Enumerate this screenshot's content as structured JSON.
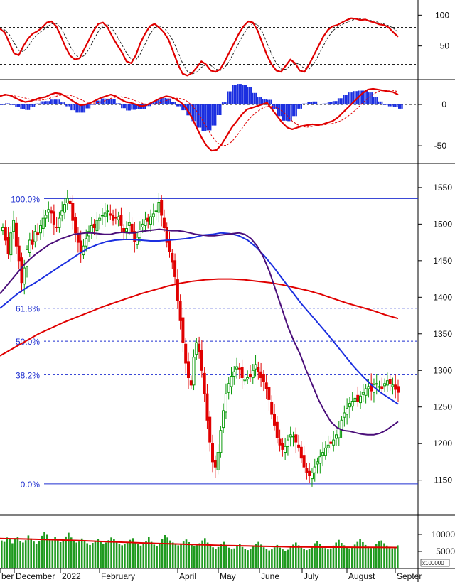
{
  "chart_data": {
    "type": "candlestick",
    "colors": {
      "up": "#0a9a0a",
      "down": "#e00000",
      "ma_short": "#4b0f7a",
      "ma_mid": "#1b2fe0",
      "ma_long": "#e00000",
      "fib": "#1f2fd0",
      "volume": "#1f9a1f"
    },
    "x_axis": {
      "labels": [
        "ber",
        "December",
        "2022",
        "February",
        "April",
        "May",
        "June",
        "July",
        "August",
        "Septer"
      ]
    },
    "price_panel": {
      "ylim": [
        1105,
        1580
      ],
      "ticks": [
        1550,
        1500,
        1450,
        1400,
        1350,
        1300,
        1250,
        1200,
        1150
      ],
      "fib_levels": [
        {
          "label": "100.0%",
          "value": 1535,
          "style": "solid"
        },
        {
          "label": "61.8%",
          "value": 1385,
          "style": "dashed"
        },
        {
          "label": "50.0%",
          "value": 1340,
          "style": "dashed"
        },
        {
          "label": "38.2%",
          "value": 1294,
          "style": "dashed"
        },
        {
          "label": "0.0%",
          "value": 1145,
          "style": "solid"
        }
      ],
      "close_series": [
        1495,
        1478,
        1460,
        1488,
        1505,
        1470,
        1450,
        1420,
        1440,
        1465,
        1478,
        1472,
        1490,
        1486,
        1498,
        1508,
        1512,
        1520,
        1515,
        1500,
        1495,
        1508,
        1518,
        1527,
        1535,
        1528,
        1505,
        1488,
        1475,
        1462,
        1470,
        1480,
        1490,
        1498,
        1495,
        1505,
        1508,
        1512,
        1515,
        1518,
        1512,
        1505,
        1508,
        1510,
        1498,
        1490,
        1494,
        1502,
        1488,
        1476,
        1482,
        1492,
        1500,
        1506,
        1504,
        1510,
        1514,
        1518,
        1530,
        1512,
        1495,
        1475,
        1462,
        1448,
        1428,
        1395,
        1368,
        1338,
        1310,
        1290,
        1280,
        1318,
        1338,
        1325,
        1300,
        1268,
        1232,
        1202,
        1175,
        1168,
        1188,
        1218,
        1245,
        1268,
        1282,
        1292,
        1298,
        1305,
        1302,
        1290,
        1288,
        1290,
        1292,
        1300,
        1308,
        1298,
        1290,
        1285,
        1275,
        1260,
        1240,
        1225,
        1208,
        1198,
        1192,
        1196,
        1205,
        1212,
        1210,
        1202,
        1195,
        1180,
        1168,
        1160,
        1156,
        1160,
        1168,
        1175,
        1182,
        1188,
        1194,
        1198,
        1200,
        1205,
        1212,
        1220,
        1232,
        1242,
        1248,
        1255,
        1258,
        1262,
        1258,
        1265,
        1270,
        1275,
        1278,
        1272,
        1280,
        1282,
        1278,
        1275,
        1282,
        1286,
        1282,
        1280,
        1274,
        1270
      ],
      "ma_short": [
        1405,
        1415,
        1425,
        1435,
        1445,
        1453,
        1460,
        1466,
        1472,
        1476,
        1480,
        1483,
        1486,
        1487,
        1488,
        1488,
        1487,
        1486,
        1486,
        1488,
        1489,
        1488,
        1488,
        1490,
        1491,
        1492,
        1493,
        1492,
        1491,
        1491,
        1490,
        1488,
        1486,
        1485,
        1484,
        1484,
        1485,
        1486,
        1487,
        1488,
        1486,
        1480,
        1470,
        1455,
        1435,
        1410,
        1385,
        1360,
        1340,
        1322,
        1300,
        1280,
        1260,
        1244,
        1230,
        1222,
        1218,
        1217,
        1215,
        1213,
        1212,
        1212,
        1214,
        1218,
        1224,
        1230
      ],
      "ma_mid": [
        1385,
        1395,
        1405,
        1413,
        1420,
        1428,
        1436,
        1444,
        1452,
        1460,
        1467,
        1472,
        1476,
        1478,
        1479,
        1479,
        1478,
        1477,
        1477,
        1478,
        1479,
        1480,
        1482,
        1485,
        1486,
        1488,
        1487,
        1484,
        1478,
        1468,
        1455,
        1440,
        1424,
        1408,
        1392,
        1378,
        1364,
        1350,
        1335,
        1320,
        1305,
        1292,
        1280,
        1270,
        1262,
        1254
      ],
      "ma_long": [
        1320,
        1330,
        1340,
        1350,
        1358,
        1366,
        1373,
        1380,
        1387,
        1393,
        1399,
        1405,
        1410,
        1415,
        1419,
        1422,
        1424,
        1425,
        1425,
        1424,
        1422,
        1420,
        1417,
        1413,
        1409,
        1404,
        1398,
        1392,
        1387,
        1382,
        1376,
        1371
      ]
    },
    "osc1_panel": {
      "ylim": [
        0,
        120
      ],
      "ticks": [
        100,
        50
      ],
      "ref_lines": [
        80,
        20
      ],
      "main": [
        78,
        72,
        55,
        38,
        35,
        50,
        62,
        70,
        74,
        80,
        88,
        90,
        82,
        66,
        48,
        34,
        28,
        30,
        45,
        60,
        75,
        86,
        88,
        80,
        65,
        52,
        40,
        25,
        22,
        35,
        55,
        70,
        82,
        86,
        80,
        72,
        60,
        40,
        20,
        5,
        2,
        6,
        15,
        25,
        20,
        10,
        8,
        12,
        25,
        40,
        55,
        70,
        82,
        90,
        88,
        75,
        55,
        35,
        20,
        10,
        8,
        18,
        28,
        22,
        10,
        8,
        20,
        35,
        50,
        65,
        76,
        82,
        84,
        88,
        92,
        95,
        94,
        92,
        93,
        90,
        88,
        85,
        84,
        80,
        72,
        65
      ]
    },
    "osc2_panel": {
      "ylim": [
        -68,
        25
      ],
      "ticks": [
        0,
        -50
      ],
      "zero_line": 0,
      "line": [
        10,
        12,
        11,
        8,
        5,
        3,
        4,
        6,
        8,
        9,
        12,
        14,
        13,
        10,
        6,
        2,
        -1,
        0,
        2,
        5,
        8,
        10,
        12,
        10,
        6,
        3,
        2,
        0,
        -2,
        -1,
        2,
        5,
        8,
        10,
        9,
        6,
        2,
        -5,
        -15,
        -28,
        -40,
        -50,
        -56,
        -55,
        -48,
        -38,
        -28,
        -20,
        -12,
        -6,
        -4,
        -2,
        0,
        2,
        -6,
        -14,
        -22,
        -28,
        -30,
        -28,
        -26,
        -25,
        -24,
        -25,
        -24,
        -22,
        -20,
        -16,
        -10,
        -4,
        2,
        8,
        14,
        18,
        19,
        18,
        17,
        16,
        15,
        12
      ]
    },
    "volume_panel": {
      "ylim": [
        0,
        15000
      ],
      "ticks": [
        10000,
        5000
      ],
      "unit_label": "x100000",
      "values": [
        8200,
        7800,
        9100,
        8600,
        7400,
        8900,
        9300,
        8000,
        7600,
        8300,
        9700,
        8800,
        7900,
        7200,
        8100,
        9600,
        10800,
        9900,
        8700,
        8200,
        9200,
        8600,
        7700,
        8500,
        9400,
        10500,
        9100,
        8300,
        7600,
        7900,
        8800,
        8200,
        7400,
        6900,
        7500,
        8100,
        8600,
        7800,
        7200,
        7600,
        8300,
        9100,
        8700,
        7900,
        7300,
        6800,
        7100,
        7700,
        8400,
        8900,
        7600,
        7100,
        6700,
        7200,
        8000,
        9300,
        7800,
        7000,
        6600,
        7400,
        8700,
        9800,
        9100,
        8200,
        7600,
        7100,
        6800,
        7300,
        7900,
        8500,
        7700,
        7000,
        6500,
        6800,
        7400,
        8200,
        8900,
        7600,
        6700,
        6200,
        5800,
        6300,
        7100,
        7800,
        6900,
        6100,
        5600,
        5900,
        6600,
        7200,
        6300,
        5800,
        5400,
        5700,
        6400,
        7100,
        7800,
        7000,
        6200,
        5800,
        5300,
        5600,
        6200,
        6900,
        6100,
        5600,
        5200,
        5500,
        6300,
        7000,
        7600,
        6800,
        6100,
        5700,
        5400,
        5800,
        6600,
        7400,
        8100,
        7300,
        6500,
        6000,
        5600,
        5900,
        6700,
        7600,
        8400,
        7500,
        6800,
        6300,
        5900,
        6200,
        7000,
        7800,
        8600,
        7700,
        6900,
        6400,
        6000,
        6300,
        7100,
        7900,
        8200,
        7400,
        6700,
        6200,
        5900,
        6100,
        6800
      ],
      "ma": [
        8800,
        8760,
        8720,
        8700,
        8650,
        8600,
        8550,
        8500,
        8440,
        8380,
        8320,
        8260,
        8200,
        8120,
        8040,
        7980,
        7900,
        7820,
        7740,
        7680,
        7620,
        7550,
        7480,
        7420,
        7360,
        7300,
        7240,
        7180,
        7120,
        7060,
        7000,
        6960,
        6900,
        6840,
        6780,
        6720,
        6680,
        6640,
        6600,
        6560,
        6520,
        6480,
        6440,
        6400,
        6360,
        6320,
        6300,
        6290,
        6280,
        6270,
        6260,
        6250,
        6240,
        6230,
        6220,
        6210,
        6200,
        6190,
        6180,
        6170,
        6160,
        6150
      ]
    }
  }
}
